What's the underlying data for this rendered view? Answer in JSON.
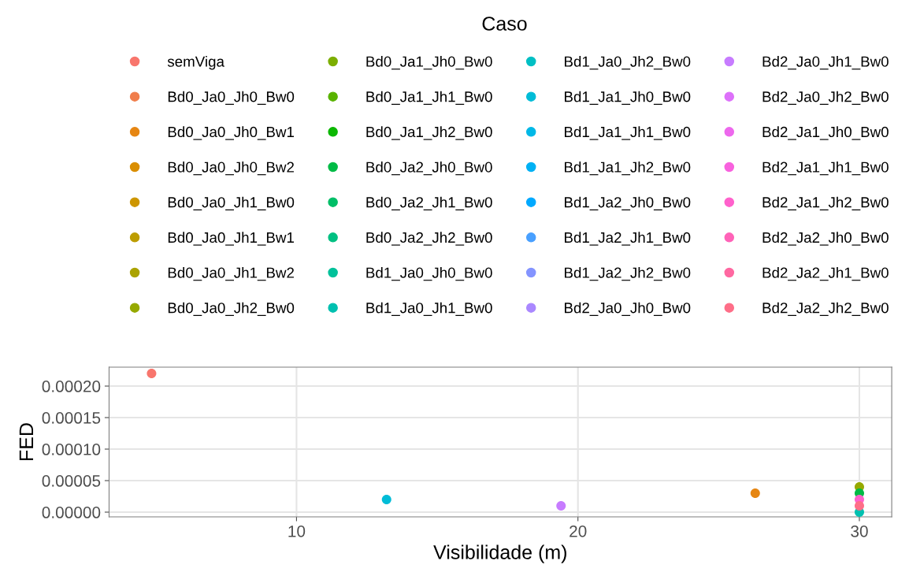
{
  "chart_data": {
    "type": "scatter",
    "xlabel": "Visibilidade (m)",
    "ylabel": "FED",
    "legend_title": "Caso",
    "legend": "top",
    "grid": true,
    "marker": "circle",
    "xlim": [
      3.34,
      31.15
    ],
    "xticks": [
      10,
      20,
      30
    ],
    "ylim": [
      -7.5e-06,
      0.00023
    ],
    "yticks": [
      {
        "value": 0,
        "label": "0.00000"
      },
      {
        "value": 5e-05,
        "label": "0.00005"
      },
      {
        "value": 0.0001,
        "label": "0.00010"
      },
      {
        "value": 0.00015,
        "label": "0.00015"
      },
      {
        "value": 0.0002,
        "label": "0.00020"
      }
    ],
    "series": [
      {
        "name": "semViga",
        "color": "#f8766d",
        "x": [
          4.85
        ],
        "values": [
          0.00022
        ]
      },
      {
        "name": "Bd0_Ja0_Jh0_Bw0",
        "color": "#f07e4c",
        "x": [
          null
        ],
        "values": [
          null
        ]
      },
      {
        "name": "Bd0_Ja0_Jh0_Bw1",
        "color": "#e68613",
        "x": [
          26.3
        ],
        "values": [
          3e-05
        ]
      },
      {
        "name": "Bd0_Ja0_Jh0_Bw2",
        "color": "#da8e00",
        "x": [
          null
        ],
        "values": [
          null
        ]
      },
      {
        "name": "Bd0_Ja0_Jh1_Bw0",
        "color": "#cd9600",
        "x": [
          null
        ],
        "values": [
          null
        ]
      },
      {
        "name": "Bd0_Ja0_Jh1_Bw1",
        "color": "#bd9d00",
        "x": [
          null
        ],
        "values": [
          null
        ]
      },
      {
        "name": "Bd0_Ja0_Jh1_Bw2",
        "color": "#aba300",
        "x": [
          null
        ],
        "values": [
          null
        ]
      },
      {
        "name": "Bd0_Ja0_Jh2_Bw0",
        "color": "#96a900",
        "x": [
          30
        ],
        "values": [
          4e-05
        ]
      },
      {
        "name": "Bd0_Ja1_Jh0_Bw0",
        "color": "#7cae00",
        "x": [
          null
        ],
        "values": [
          null
        ]
      },
      {
        "name": "Bd0_Ja1_Jh1_Bw0",
        "color": "#59b300",
        "x": [
          null
        ],
        "values": [
          null
        ]
      },
      {
        "name": "Bd0_Ja1_Jh2_Bw0",
        "color": "#0cb702",
        "x": [
          null
        ],
        "values": [
          null
        ]
      },
      {
        "name": "Bd0_Ja2_Jh0_Bw0",
        "color": "#00bb46",
        "x": [
          30
        ],
        "values": [
          3e-05
        ]
      },
      {
        "name": "Bd0_Ja2_Jh1_Bw0",
        "color": "#00be67",
        "x": [
          null
        ],
        "values": [
          null
        ]
      },
      {
        "name": "Bd0_Ja2_Jh2_Bw0",
        "color": "#00c082",
        "x": [
          null
        ],
        "values": [
          null
        ]
      },
      {
        "name": "Bd1_Ja0_Jh0_Bw0",
        "color": "#00c19a",
        "x": [
          null
        ],
        "values": [
          null
        ]
      },
      {
        "name": "Bd1_Ja0_Jh1_Bw0",
        "color": "#00c0b0",
        "x": [
          30
        ],
        "values": [
          0.0
        ]
      },
      {
        "name": "Bd1_Ja0_Jh2_Bw0",
        "color": "#00bfc4",
        "x": [
          null
        ],
        "values": [
          null
        ]
      },
      {
        "name": "Bd1_Ja1_Jh0_Bw0",
        "color": "#00bcd7",
        "x": [
          13.2
        ],
        "values": [
          2e-05
        ]
      },
      {
        "name": "Bd1_Ja1_Jh1_Bw0",
        "color": "#00b8e7",
        "x": [
          null
        ],
        "values": [
          null
        ]
      },
      {
        "name": "Bd1_Ja1_Jh2_Bw0",
        "color": "#00b1f4",
        "x": [
          null
        ],
        "values": [
          null
        ]
      },
      {
        "name": "Bd1_Ja2_Jh0_Bw0",
        "color": "#00a9ff",
        "x": [
          null
        ],
        "values": [
          null
        ]
      },
      {
        "name": "Bd1_Ja2_Jh1_Bw0",
        "color": "#49a0ff",
        "x": [
          null
        ],
        "values": [
          null
        ]
      },
      {
        "name": "Bd1_Ja2_Jh2_Bw0",
        "color": "#8494ff",
        "x": [
          null
        ],
        "values": [
          null
        ]
      },
      {
        "name": "Bd2_Ja0_Jh0_Bw0",
        "color": "#aa88ff",
        "x": [
          null
        ],
        "values": [
          null
        ]
      },
      {
        "name": "Bd2_Ja0_Jh1_Bw0",
        "color": "#c77cff",
        "x": [
          19.4
        ],
        "values": [
          1e-05
        ]
      },
      {
        "name": "Bd2_Ja0_Jh2_Bw0",
        "color": "#dd71fa",
        "x": [
          null
        ],
        "values": [
          null
        ]
      },
      {
        "name": "Bd2_Ja1_Jh0_Bw0",
        "color": "#ed68ed",
        "x": [
          null
        ],
        "values": [
          null
        ]
      },
      {
        "name": "Bd2_Ja1_Jh1_Bw0",
        "color": "#f862de",
        "x": [
          null
        ],
        "values": [
          null
        ]
      },
      {
        "name": "Bd2_Ja1_Jh2_Bw0",
        "color": "#ff61cc",
        "x": [
          30
        ],
        "values": [
          2e-05
        ]
      },
      {
        "name": "Bd2_Ja2_Jh0_Bw0",
        "color": "#ff63b8",
        "x": [
          null
        ],
        "values": [
          null
        ]
      },
      {
        "name": "Bd2_Ja2_Jh1_Bw0",
        "color": "#ff68a1",
        "x": [
          null
        ],
        "values": [
          null
        ]
      },
      {
        "name": "Bd2_Ja2_Jh2_Bw0",
        "color": "#fe6e88",
        "x": [
          30
        ],
        "values": [
          1e-05
        ]
      }
    ]
  }
}
